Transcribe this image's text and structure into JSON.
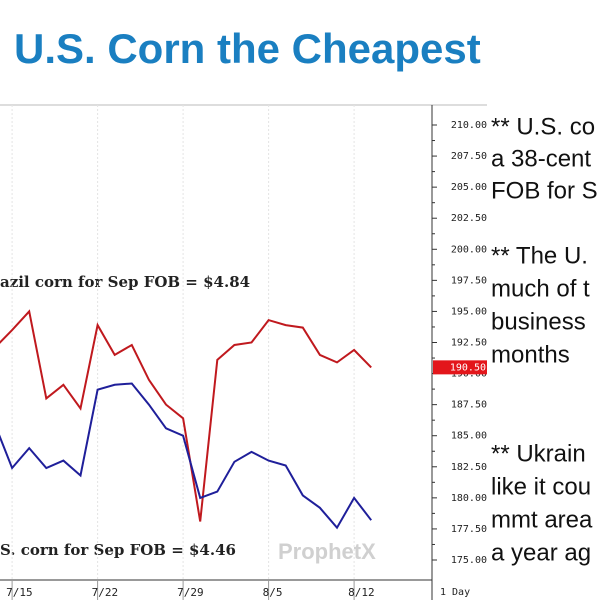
{
  "chart_data": {
    "type": "line",
    "title": "U.S. Corn the Cheapest",
    "categories": [
      null,
      "7/15",
      null,
      null,
      null,
      null,
      "7/22",
      null,
      null,
      null,
      null,
      "7/29",
      null,
      null,
      null,
      null,
      "8/5",
      null,
      null,
      null,
      null,
      "8/12",
      null
    ],
    "period_label": "1 Day",
    "series": [
      {
        "color": "#c0191e",
        "values": [
          192.1,
          193.5,
          195.0,
          188.0,
          189.1,
          187.2,
          193.9,
          191.5,
          192.3,
          189.5,
          187.5,
          186.4,
          178.1,
          191.1,
          192.3,
          192.5,
          194.3,
          193.9,
          193.7,
          191.5,
          190.9,
          191.9,
          190.5
        ]
      },
      {
        "color": "#1f1f9a",
        "values": [
          185.9,
          182.4,
          184.0,
          182.4,
          183.0,
          181.8,
          188.7,
          189.1,
          189.2,
          187.5,
          185.6,
          185.0,
          180.0,
          180.5,
          182.9,
          183.7,
          183.0,
          182.6,
          180.2,
          179.2,
          177.6,
          180.0,
          178.2
        ]
      }
    ],
    "ylim": [
      175,
      210
    ],
    "yticks": [
      {
        "value": 175,
        "label": "175.00"
      },
      {
        "value": 177.5,
        "label": "177.50"
      },
      {
        "value": 180,
        "label": "180.00"
      },
      {
        "value": 182.5,
        "label": "182.50"
      },
      {
        "value": 185,
        "label": "185.00"
      },
      {
        "value": 187.5,
        "label": "187.50"
      },
      {
        "value": 190,
        "label": "190.00"
      },
      {
        "value": 192.5,
        "label": "192.50"
      },
      {
        "value": 195,
        "label": "195.00"
      },
      {
        "value": 197.5,
        "label": "197.50"
      },
      {
        "value": 200,
        "label": "200.00"
      },
      {
        "value": 202.5,
        "label": "202.50"
      },
      {
        "value": 205,
        "label": "205.00"
      },
      {
        "value": 207.5,
        "label": "207.50"
      },
      {
        "value": 210,
        "label": "210.00"
      }
    ],
    "last_value": {
      "value": 190.5,
      "label": "190.50",
      "color": "#e3161b"
    },
    "annotations": [
      "azil corn for Sep FOB = $4.84",
      "S. corn for Sep FOB = $4.46"
    ],
    "watermark": "ProphetX",
    "grid": false
  },
  "side_text": [
    "** U.S. co",
    "a 38-cent",
    "FOB for S",
    "** The U.",
    "much of t",
    "business",
    "months",
    "** Ukrain",
    "like it cou",
    "mmt area",
    "a year ag"
  ]
}
